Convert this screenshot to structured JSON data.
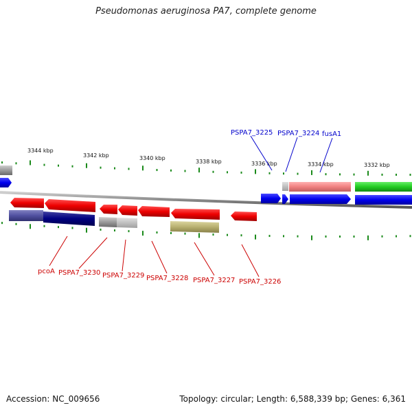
{
  "title": "Pseudomonas aeruginosa PA7, complete genome",
  "footer": {
    "accession": "Accession: NC_009656",
    "topology": "Topology: circular; Length: 6,588,339 bp; Genes: 6,361"
  },
  "scale_labels": [
    "3344 kbp",
    "3342 kbp",
    "3340 kbp",
    "3338 kbp",
    "3336 kbp",
    "3334 kbp",
    "3332 kbp"
  ],
  "gene_labels_top": [
    "PSPA7_3225",
    "PSPA7_3224",
    "fusA1"
  ],
  "gene_labels_bottom": [
    "pcoA",
    "PSPA7_3230",
    "PSPA7_3229",
    "PSPA7_3228",
    "PSPA7_3227",
    "PSPA7_3226"
  ],
  "colors": {
    "forward_gene": "#0000ee",
    "reverse_gene": "#ee0000",
    "backbone": "#888888",
    "tick": "#1a8a1a",
    "label_forward": "#0000cc",
    "label_reverse": "#cc0000",
    "cog_green": "#22cc22",
    "cog_pink": "#f08080",
    "cog_olive": "#b8b070",
    "cog_navy": "#000080",
    "cog_gray": "#777777"
  }
}
